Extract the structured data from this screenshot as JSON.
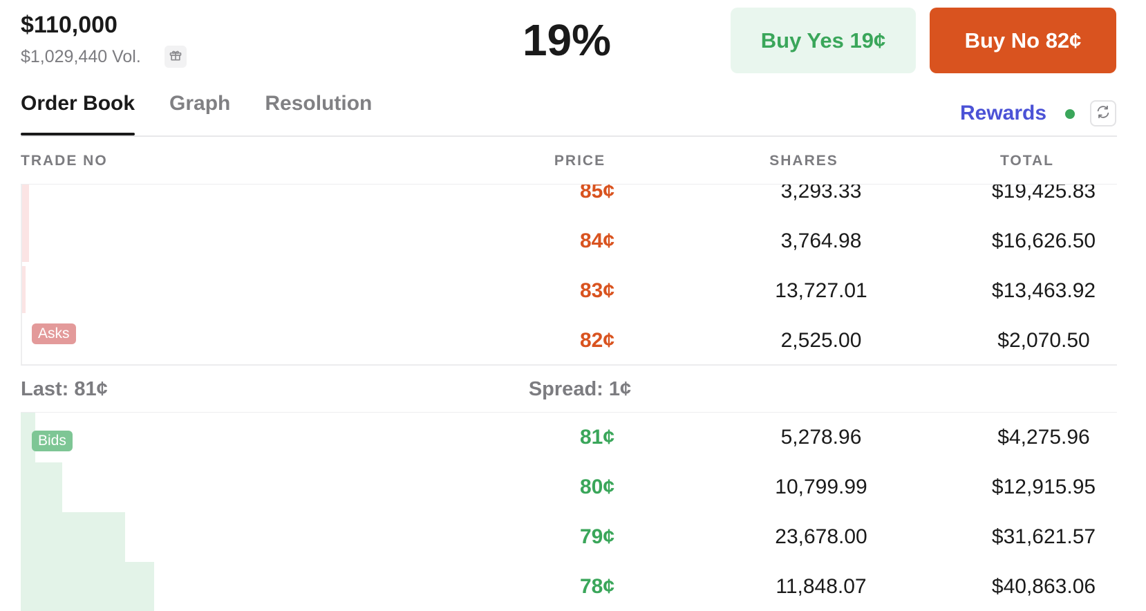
{
  "header": {
    "title": "$110,000",
    "volume": "$1,029,440 Vol.",
    "gift_icon": "gift-icon",
    "probability": "19%",
    "buy_yes_label": "Buy Yes 19¢",
    "buy_no_label": "Buy No 82¢"
  },
  "tabs": [
    {
      "label": "Order Book",
      "active": true
    },
    {
      "label": "Graph",
      "active": false
    },
    {
      "label": "Resolution",
      "active": false
    }
  ],
  "rewards": {
    "label": "Rewards",
    "status_color": "#3aa65a",
    "refresh_icon": "refresh-icon"
  },
  "table": {
    "headers": {
      "trade": "TRADE NO",
      "price": "PRICE",
      "shares": "SHARES",
      "total": "TOTAL"
    },
    "asks_label": "Asks",
    "bids_label": "Bids",
    "asks": [
      {
        "price": "85¢",
        "shares": "3,293.33",
        "total": "$19,425.83",
        "depth": 0.006
      },
      {
        "price": "84¢",
        "shares": "3,764.98",
        "total": "$16,626.50",
        "depth": 0.006
      },
      {
        "price": "83¢",
        "shares": "13,727.01",
        "total": "$13,463.92",
        "depth": 0.003
      },
      {
        "price": "82¢",
        "shares": "2,525.00",
        "total": "$2,070.50",
        "depth": 0.0
      }
    ],
    "last": "Last: 81¢",
    "spread": "Spread: 1¢",
    "bids": [
      {
        "price": "81¢",
        "shares": "5,278.96",
        "total": "$4,275.96",
        "depth": 0.013
      },
      {
        "price": "80¢",
        "shares": "10,799.99",
        "total": "$12,915.95",
        "depth": 0.038
      },
      {
        "price": "79¢",
        "shares": "23,678.00",
        "total": "$31,621.57",
        "depth": 0.095
      },
      {
        "price": "78¢",
        "shares": "11,848.07",
        "total": "$40,863.06",
        "depth": 0.122
      }
    ]
  },
  "colors": {
    "ask": "#d9531f",
    "bid": "#3aa65a",
    "buy_no_bg": "#d9531f",
    "buy_yes_bg": "#e9f6ee",
    "rewards": "#4b52d6"
  }
}
